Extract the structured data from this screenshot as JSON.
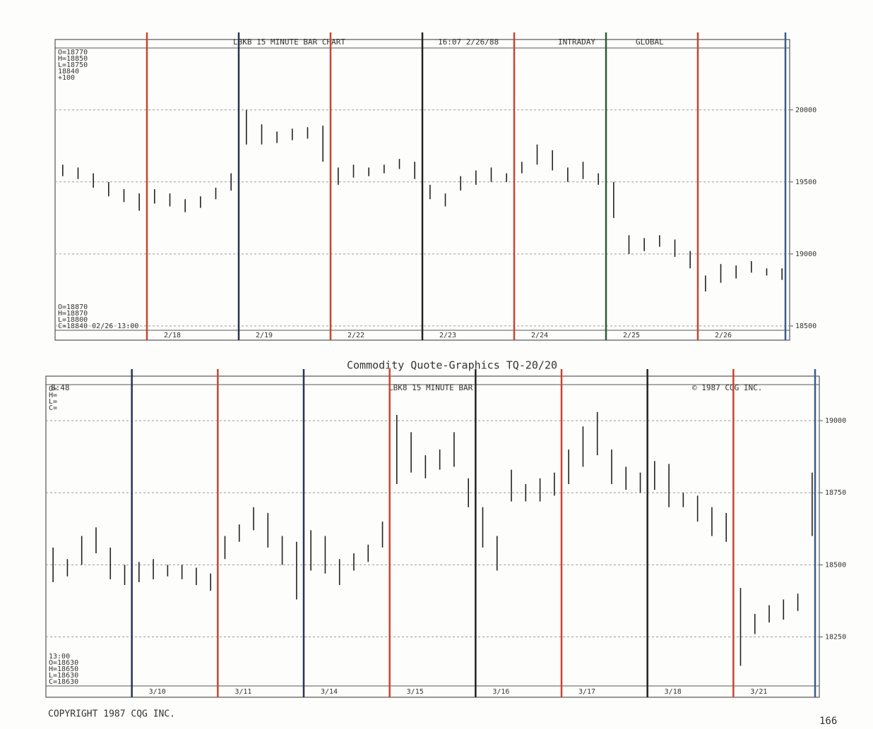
{
  "page": {
    "caption": "Commodity Quote-Graphics  TQ-20/20",
    "copyright": "COPYRIGHT 1987 CQG INC.",
    "page_number": "166"
  },
  "chart_data": [
    {
      "type": "range-bar",
      "header_fields": [
        "LBKB 15 MINUTE BAR CHART",
        "16:07  2/26/88",
        "INTRADAY",
        "GLOBAL"
      ],
      "quote_top": [
        "O=18770",
        "H=18850",
        "L=18750",
        "  18840",
        "  +100"
      ],
      "quote_bottom": [
        "O=18870",
        "H=18870",
        "L=18800",
        "C=18840  02/26   13:00"
      ],
      "ylim": [
        18470,
        20430
      ],
      "yticks": [
        18500,
        19000,
        19500,
        20000
      ],
      "grid": true,
      "divider_colors": [
        "#c8452e",
        "#2a3350",
        "#c8452e",
        "#222222",
        "#c8452e",
        "#2f5a3a",
        "#c8452e",
        "#3a5c90"
      ],
      "sessions": [
        {
          "label": null,
          "high": [
            19620,
            19600,
            19560,
            19500,
            19450,
            19420
          ],
          "low": [
            19540,
            19520,
            19460,
            19400,
            19360,
            19300
          ]
        },
        {
          "label": "2/18",
          "high": [
            19450,
            19420,
            19380,
            19400,
            19460,
            19560
          ],
          "low": [
            19350,
            19330,
            19290,
            19320,
            19380,
            19440
          ]
        },
        {
          "label": "2/19",
          "high": [
            20000,
            19900,
            19850,
            19870,
            19880,
            19890
          ],
          "low": [
            19760,
            19760,
            19770,
            19790,
            19800,
            19640
          ]
        },
        {
          "label": "2/22",
          "high": [
            19600,
            19620,
            19600,
            19620,
            19660,
            19640
          ],
          "low": [
            19480,
            19530,
            19540,
            19560,
            19590,
            19520
          ]
        },
        {
          "label": "2/23",
          "high": [
            19480,
            19420,
            19540,
            19580,
            19600,
            19560
          ],
          "low": [
            19380,
            19330,
            19440,
            19480,
            19500,
            19500
          ]
        },
        {
          "label": "2/24",
          "high": [
            19640,
            19760,
            19720,
            19600,
            19640,
            19560
          ],
          "low": [
            19560,
            19620,
            19580,
            19500,
            19520,
            19480
          ]
        },
        {
          "label": "2/25",
          "high": [
            19500,
            19130,
            19110,
            19130,
            19100,
            19020
          ],
          "low": [
            19250,
            19000,
            19020,
            19050,
            18980,
            18900
          ]
        },
        {
          "label": "2/26",
          "high": [
            18850,
            18930,
            18920,
            18950,
            18900,
            18900
          ],
          "low": [
            18740,
            18800,
            18830,
            18870,
            18850,
            18820
          ]
        }
      ]
    },
    {
      "type": "range-bar",
      "header_fields": [
        "8:48",
        "LBK8 15 MINUTE BAR",
        "© 1987 CQG INC."
      ],
      "quote_top": [
        "O=",
        "H=",
        "L=",
        "C="
      ],
      "quote_bottom": [
        "    13:00",
        "O=18630",
        "H=18650",
        "L=18630",
        "C=18630"
      ],
      "ylim": [
        18080,
        19125
      ],
      "yticks": [
        18250,
        18500,
        18750,
        19000
      ],
      "grid": true,
      "divider_colors": [
        "#2a3350",
        "#c8452e",
        "#2a3350",
        "#c8452e",
        "#222222",
        "#c8452e",
        "#222222",
        "#c8452e",
        "#3a5c90"
      ],
      "sessions": [
        {
          "label": null,
          "high": [
            18560,
            18520,
            18600,
            18630,
            18560,
            18500
          ],
          "low": [
            18440,
            18460,
            18500,
            18540,
            18450,
            18430
          ]
        },
        {
          "label": "3/10",
          "high": [
            18510,
            18520,
            18500,
            18500,
            18490,
            18470
          ],
          "low": [
            18440,
            18450,
            18460,
            18450,
            18430,
            18410
          ]
        },
        {
          "label": "3/11",
          "high": [
            18600,
            18640,
            18700,
            18680,
            18600,
            18580
          ],
          "low": [
            18520,
            18580,
            18620,
            18560,
            18500,
            18380
          ]
        },
        {
          "label": "3/14",
          "high": [
            18620,
            18600,
            18520,
            18540,
            18570,
            18650
          ],
          "low": [
            18480,
            18470,
            18430,
            18480,
            18510,
            18560
          ]
        },
        {
          "label": "3/15",
          "high": [
            19020,
            18960,
            18880,
            18900,
            18960,
            18800
          ],
          "low": [
            18780,
            18820,
            18800,
            18830,
            18840,
            18700
          ]
        },
        {
          "label": "3/16",
          "high": [
            18700,
            18600,
            18830,
            18780,
            18800,
            18820
          ],
          "low": [
            18560,
            18480,
            18720,
            18720,
            18720,
            18740
          ]
        },
        {
          "label": "3/17",
          "high": [
            18900,
            18980,
            19030,
            18900,
            18840,
            18820
          ],
          "low": [
            18780,
            18840,
            18880,
            18780,
            18760,
            18750
          ]
        },
        {
          "label": "3/18",
          "high": [
            18860,
            18850,
            18750,
            18740,
            18700,
            18680
          ],
          "low": [
            18760,
            18700,
            18700,
            18650,
            18600,
            18580
          ]
        },
        {
          "label": "3/21",
          "high": [
            18420,
            18330,
            18360,
            18380,
            18400,
            18820
          ],
          "low": [
            18150,
            18260,
            18300,
            18310,
            18340,
            18600
          ]
        }
      ]
    }
  ]
}
